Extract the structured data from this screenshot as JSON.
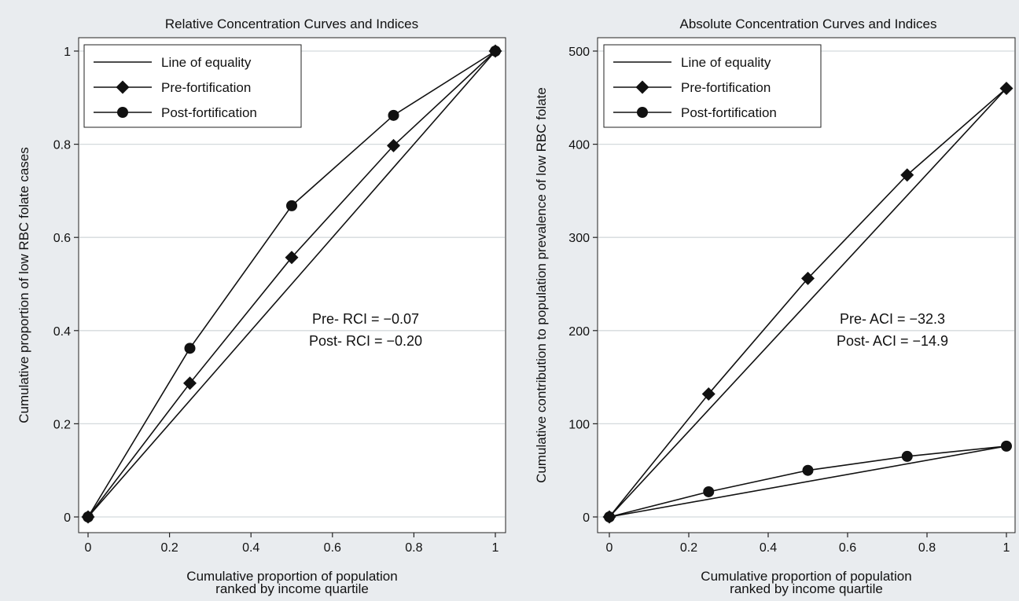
{
  "chart_data": [
    {
      "type": "line",
      "title": "Relative Concentration Curves and Indices",
      "xlabel": [
        "Cumulative proportion of population",
        "ranked by income quartile"
      ],
      "ylabel": "Cumulative proportion of low RBC folate cases",
      "xlim": [
        0,
        1
      ],
      "ylim": [
        0,
        1
      ],
      "xticks": [
        0,
        0.2,
        0.4,
        0.6,
        0.8,
        1
      ],
      "xtick_labels": [
        "0",
        "0.2",
        "0.4",
        "0.6",
        "0.8",
        "1"
      ],
      "yticks": [
        0,
        0.2,
        0.4,
        0.6,
        0.8,
        1
      ],
      "ytick_labels": [
        "0",
        "0.2",
        "0.4",
        "0.6",
        "0.8",
        "1"
      ],
      "grid": "horizontal",
      "legend_position": "top-left",
      "series": [
        {
          "name": "Line of equality",
          "marker": "none",
          "x": [
            0,
            1
          ],
          "y": [
            0,
            1
          ]
        },
        {
          "name": "Pre-fortification",
          "marker": "diamond",
          "x": [
            0,
            0.25,
            0.5,
            0.75,
            1
          ],
          "y": [
            0,
            0.287,
            0.557,
            0.797,
            1
          ]
        },
        {
          "name": "Post-fortification",
          "marker": "circle",
          "x": [
            0,
            0.25,
            0.5,
            0.75,
            1
          ],
          "y": [
            0,
            0.362,
            0.668,
            0.862,
            1
          ]
        }
      ],
      "annotations": [
        "Pre- RCI = −0.07",
        "Post- RCI = −0.20"
      ]
    },
    {
      "type": "line",
      "title": "Absolute Concentration Curves and Indices",
      "xlabel": [
        "Cumulative proportion of population",
        "ranked by income quartile"
      ],
      "ylabel": "Cumulative contribution to population prevalence of low RBC folate",
      "xlim": [
        0,
        1
      ],
      "ylim": [
        0,
        500
      ],
      "xticks": [
        0,
        0.2,
        0.4,
        0.6,
        0.8,
        1
      ],
      "xtick_labels": [
        "0",
        "0.2",
        "0.4",
        "0.6",
        "0.8",
        "1"
      ],
      "yticks": [
        0,
        100,
        200,
        300,
        400,
        500
      ],
      "ytick_labels": [
        "0",
        "100",
        "200",
        "300",
        "400",
        "500"
      ],
      "grid": "horizontal",
      "legend_position": "top-left",
      "series": [
        {
          "name": "Line of equality",
          "marker": "none",
          "x": [
            0,
            1
          ],
          "y": [
            0,
            460
          ]
        },
        {
          "name": "Line of equality",
          "marker": "none",
          "legend": false,
          "x": [
            0,
            1
          ],
          "y": [
            0,
            76
          ]
        },
        {
          "name": "Pre-fortification",
          "marker": "diamond",
          "x": [
            0,
            0.25,
            0.5,
            0.75,
            1
          ],
          "y": [
            0,
            132,
            256,
            367,
            460
          ]
        },
        {
          "name": "Post-fortification",
          "marker": "circle",
          "x": [
            0,
            0.25,
            0.5,
            0.75,
            1
          ],
          "y": [
            0,
            27,
            50,
            65,
            76
          ]
        }
      ],
      "annotations": [
        "Pre- ACI = −32.3",
        "Post- ACI = −14.9"
      ]
    }
  ]
}
